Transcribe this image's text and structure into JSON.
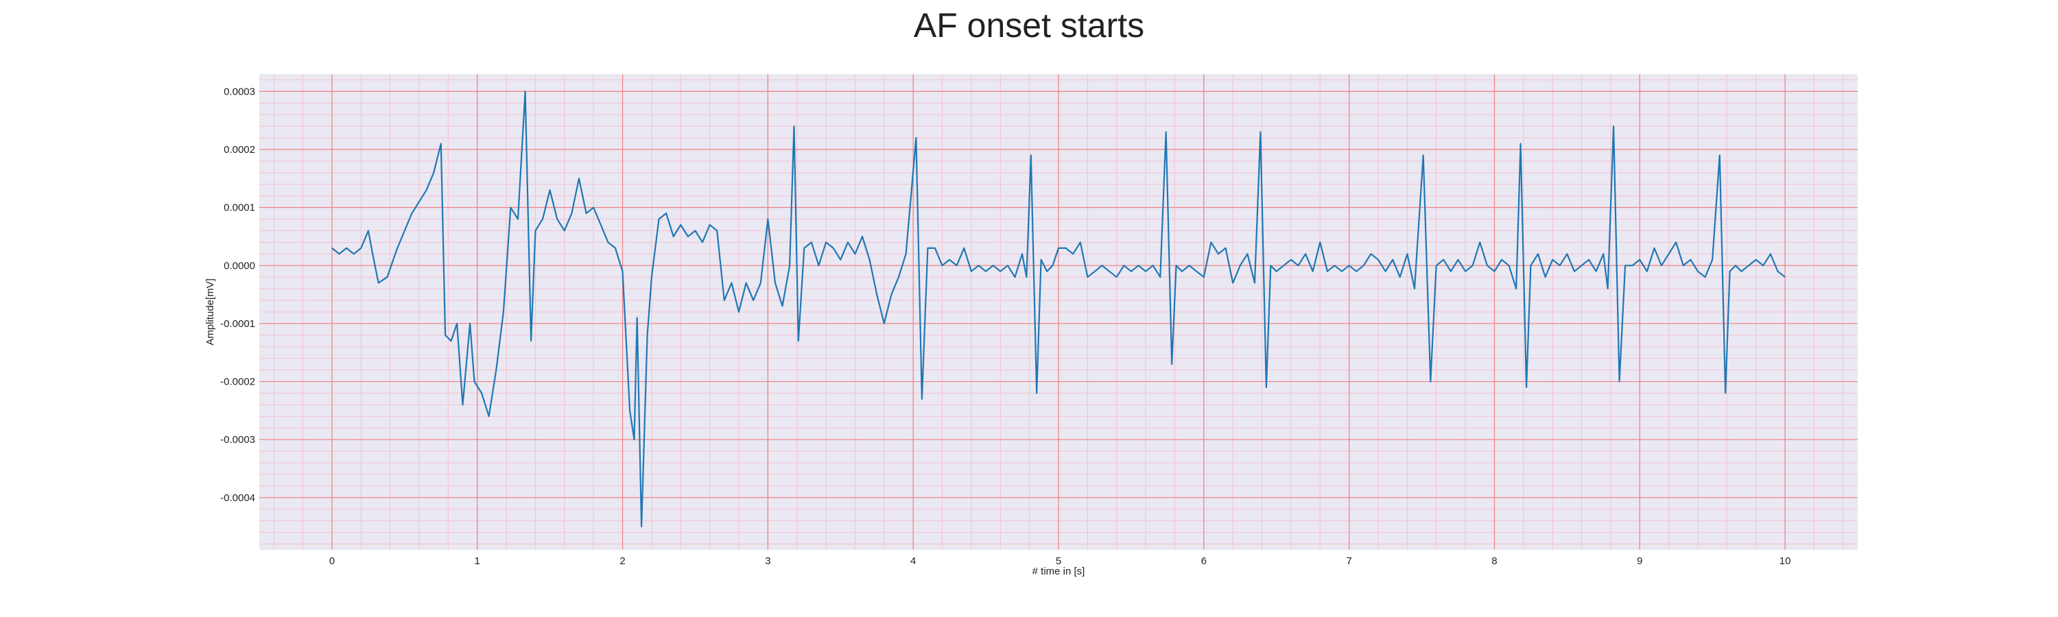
{
  "chart_data": {
    "type": "line",
    "title": "AF onset starts",
    "xlabel": "# time in [s]",
    "ylabel": "Amplitude[mV]",
    "xlim": [
      -0.5,
      10.5
    ],
    "ylim": [
      -0.00049,
      0.00033
    ],
    "xticks": [
      0,
      1,
      2,
      3,
      4,
      5,
      6,
      7,
      8,
      9,
      10
    ],
    "xtick_labels": [
      "0",
      "1",
      "2",
      "3",
      "4",
      "5",
      "6",
      "7",
      "8",
      "9",
      "10"
    ],
    "yticks": [
      0.0003,
      0.0002,
      0.0001,
      0.0,
      -0.0001,
      -0.0002,
      -0.0003,
      -0.0004
    ],
    "ytick_labels": [
      "0.0003",
      "0.0002",
      "0.0001",
      "0.0000",
      "-0.0001",
      "-0.0002",
      "-0.0003",
      "-0.0004"
    ],
    "grid": true,
    "grid_major_color": "#f08080",
    "grid_minor_color": "#f4c2d0",
    "background_color": "#eae8f2",
    "series": [
      {
        "color": "#1f77b4",
        "points": [
          [
            0.0,
            3e-05
          ],
          [
            0.05,
            2e-05
          ],
          [
            0.1,
            3e-05
          ],
          [
            0.15,
            2e-05
          ],
          [
            0.2,
            3e-05
          ],
          [
            0.25,
            6e-05
          ],
          [
            0.28,
            2e-05
          ],
          [
            0.32,
            -3e-05
          ],
          [
            0.38,
            -2e-05
          ],
          [
            0.45,
            3e-05
          ],
          [
            0.5,
            6e-05
          ],
          [
            0.55,
            9e-05
          ],
          [
            0.6,
            0.00011
          ],
          [
            0.65,
            0.00013
          ],
          [
            0.7,
            0.00016
          ],
          [
            0.75,
            0.00021
          ],
          [
            0.78,
            -0.00012
          ],
          [
            0.82,
            -0.00013
          ],
          [
            0.86,
            -0.0001
          ],
          [
            0.9,
            -0.00024
          ],
          [
            0.95,
            -0.0001
          ],
          [
            0.98,
            -0.0002
          ],
          [
            1.03,
            -0.00022
          ],
          [
            1.08,
            -0.00026
          ],
          [
            1.13,
            -0.00018
          ],
          [
            1.18,
            -8e-05
          ],
          [
            1.23,
            0.0001
          ],
          [
            1.28,
            8e-05
          ],
          [
            1.33,
            0.0003
          ],
          [
            1.37,
            -0.00013
          ],
          [
            1.4,
            6e-05
          ],
          [
            1.45,
            8e-05
          ],
          [
            1.5,
            0.00013
          ],
          [
            1.55,
            8e-05
          ],
          [
            1.6,
            6e-05
          ],
          [
            1.65,
            9e-05
          ],
          [
            1.7,
            0.00015
          ],
          [
            1.75,
            9e-05
          ],
          [
            1.8,
            0.0001
          ],
          [
            1.85,
            7e-05
          ],
          [
            1.9,
            4e-05
          ],
          [
            1.95,
            3e-05
          ],
          [
            2.0,
            -1e-05
          ],
          [
            2.05,
            -0.00025
          ],
          [
            2.08,
            -0.0003
          ],
          [
            2.1,
            -9e-05
          ],
          [
            2.13,
            -0.00045
          ],
          [
            2.17,
            -0.00012
          ],
          [
            2.2,
            -2e-05
          ],
          [
            2.25,
            8e-05
          ],
          [
            2.3,
            9e-05
          ],
          [
            2.35,
            5e-05
          ],
          [
            2.4,
            7e-05
          ],
          [
            2.45,
            5e-05
          ],
          [
            2.5,
            6e-05
          ],
          [
            2.55,
            4e-05
          ],
          [
            2.6,
            7e-05
          ],
          [
            2.65,
            6e-05
          ],
          [
            2.7,
            -6e-05
          ],
          [
            2.75,
            -3e-05
          ],
          [
            2.8,
            -8e-05
          ],
          [
            2.85,
            -3e-05
          ],
          [
            2.9,
            -6e-05
          ],
          [
            2.95,
            -3e-05
          ],
          [
            3.0,
            8e-05
          ],
          [
            3.05,
            -3e-05
          ],
          [
            3.1,
            -7e-05
          ],
          [
            3.15,
            0.0
          ],
          [
            3.18,
            0.00024
          ],
          [
            3.21,
            -0.00013
          ],
          [
            3.25,
            3e-05
          ],
          [
            3.3,
            4e-05
          ],
          [
            3.35,
            0.0
          ],
          [
            3.4,
            4e-05
          ],
          [
            3.45,
            3e-05
          ],
          [
            3.5,
            1e-05
          ],
          [
            3.55,
            4e-05
          ],
          [
            3.6,
            2e-05
          ],
          [
            3.65,
            5e-05
          ],
          [
            3.7,
            1e-05
          ],
          [
            3.75,
            -5e-05
          ],
          [
            3.8,
            -0.0001
          ],
          [
            3.85,
            -5e-05
          ],
          [
            3.9,
            -2e-05
          ],
          [
            3.95,
            2e-05
          ],
          [
            4.02,
            0.00022
          ],
          [
            4.06,
            -0.00023
          ],
          [
            4.1,
            3e-05
          ],
          [
            4.15,
            3e-05
          ],
          [
            4.2,
            0.0
          ],
          [
            4.25,
            1e-05
          ],
          [
            4.3,
            0.0
          ],
          [
            4.35,
            3e-05
          ],
          [
            4.4,
            -1e-05
          ],
          [
            4.45,
            0.0
          ],
          [
            4.5,
            -1e-05
          ],
          [
            4.55,
            0.0
          ],
          [
            4.6,
            -1e-05
          ],
          [
            4.65,
            0.0
          ],
          [
            4.7,
            -2e-05
          ],
          [
            4.75,
            2e-05
          ],
          [
            4.78,
            -2e-05
          ],
          [
            4.81,
            0.00019
          ],
          [
            4.85,
            -0.00022
          ],
          [
            4.88,
            1e-05
          ],
          [
            4.92,
            -1e-05
          ],
          [
            4.96,
            0.0
          ],
          [
            5.0,
            3e-05
          ],
          [
            5.05,
            3e-05
          ],
          [
            5.1,
            2e-05
          ],
          [
            5.15,
            4e-05
          ],
          [
            5.2,
            -2e-05
          ],
          [
            5.25,
            -1e-05
          ],
          [
            5.3,
            0.0
          ],
          [
            5.35,
            -1e-05
          ],
          [
            5.4,
            -2e-05
          ],
          [
            5.45,
            0.0
          ],
          [
            5.5,
            -1e-05
          ],
          [
            5.55,
            0.0
          ],
          [
            5.6,
            -1e-05
          ],
          [
            5.65,
            0.0
          ],
          [
            5.7,
            -2e-05
          ],
          [
            5.74,
            0.00023
          ],
          [
            5.78,
            -0.00017
          ],
          [
            5.81,
            0.0
          ],
          [
            5.85,
            -1e-05
          ],
          [
            5.9,
            0.0
          ],
          [
            5.95,
            -1e-05
          ],
          [
            6.0,
            -2e-05
          ],
          [
            6.05,
            4e-05
          ],
          [
            6.1,
            2e-05
          ],
          [
            6.15,
            3e-05
          ],
          [
            6.2,
            -3e-05
          ],
          [
            6.25,
            0.0
          ],
          [
            6.3,
            2e-05
          ],
          [
            6.35,
            -3e-05
          ],
          [
            6.39,
            0.00023
          ],
          [
            6.43,
            -0.00021
          ],
          [
            6.46,
            0.0
          ],
          [
            6.5,
            -1e-05
          ],
          [
            6.55,
            0.0
          ],
          [
            6.6,
            1e-05
          ],
          [
            6.65,
            0.0
          ],
          [
            6.7,
            2e-05
          ],
          [
            6.75,
            -1e-05
          ],
          [
            6.8,
            4e-05
          ],
          [
            6.85,
            -1e-05
          ],
          [
            6.9,
            0.0
          ],
          [
            6.95,
            -1e-05
          ],
          [
            7.0,
            0.0
          ],
          [
            7.05,
            -1e-05
          ],
          [
            7.1,
            0.0
          ],
          [
            7.15,
            2e-05
          ],
          [
            7.2,
            1e-05
          ],
          [
            7.25,
            -1e-05
          ],
          [
            7.3,
            1e-05
          ],
          [
            7.35,
            -2e-05
          ],
          [
            7.4,
            2e-05
          ],
          [
            7.45,
            -4e-05
          ],
          [
            7.51,
            0.00019
          ],
          [
            7.56,
            -0.0002
          ],
          [
            7.6,
            0.0
          ],
          [
            7.65,
            1e-05
          ],
          [
            7.7,
            -1e-05
          ],
          [
            7.75,
            1e-05
          ],
          [
            7.8,
            -1e-05
          ],
          [
            7.85,
            0.0
          ],
          [
            7.9,
            4e-05
          ],
          [
            7.95,
            0.0
          ],
          [
            8.0,
            -1e-05
          ],
          [
            8.05,
            1e-05
          ],
          [
            8.1,
            0.0
          ],
          [
            8.15,
            -4e-05
          ],
          [
            8.18,
            0.00021
          ],
          [
            8.22,
            -0.00021
          ],
          [
            8.25,
            0.0
          ],
          [
            8.3,
            2e-05
          ],
          [
            8.35,
            -2e-05
          ],
          [
            8.4,
            1e-05
          ],
          [
            8.45,
            0.0
          ],
          [
            8.5,
            2e-05
          ],
          [
            8.55,
            -1e-05
          ],
          [
            8.6,
            0.0
          ],
          [
            8.65,
            1e-05
          ],
          [
            8.7,
            -1e-05
          ],
          [
            8.75,
            2e-05
          ],
          [
            8.78,
            -4e-05
          ],
          [
            8.82,
            0.00024
          ],
          [
            8.86,
            -0.0002
          ],
          [
            8.9,
            0.0
          ],
          [
            8.95,
            0.0
          ],
          [
            9.0,
            1e-05
          ],
          [
            9.05,
            -1e-05
          ],
          [
            9.1,
            3e-05
          ],
          [
            9.15,
            0.0
          ],
          [
            9.2,
            2e-05
          ],
          [
            9.25,
            4e-05
          ],
          [
            9.3,
            0.0
          ],
          [
            9.35,
            1e-05
          ],
          [
            9.4,
            -1e-05
          ],
          [
            9.45,
            -2e-05
          ],
          [
            9.5,
            1e-05
          ],
          [
            9.55,
            0.00019
          ],
          [
            9.59,
            -0.00022
          ],
          [
            9.62,
            -1e-05
          ],
          [
            9.66,
            0.0
          ],
          [
            9.7,
            -1e-05
          ],
          [
            9.75,
            0.0
          ],
          [
            9.8,
            1e-05
          ],
          [
            9.85,
            0.0
          ],
          [
            9.9,
            2e-05
          ],
          [
            9.95,
            -1e-05
          ],
          [
            10.0,
            -2e-05
          ]
        ]
      }
    ]
  }
}
